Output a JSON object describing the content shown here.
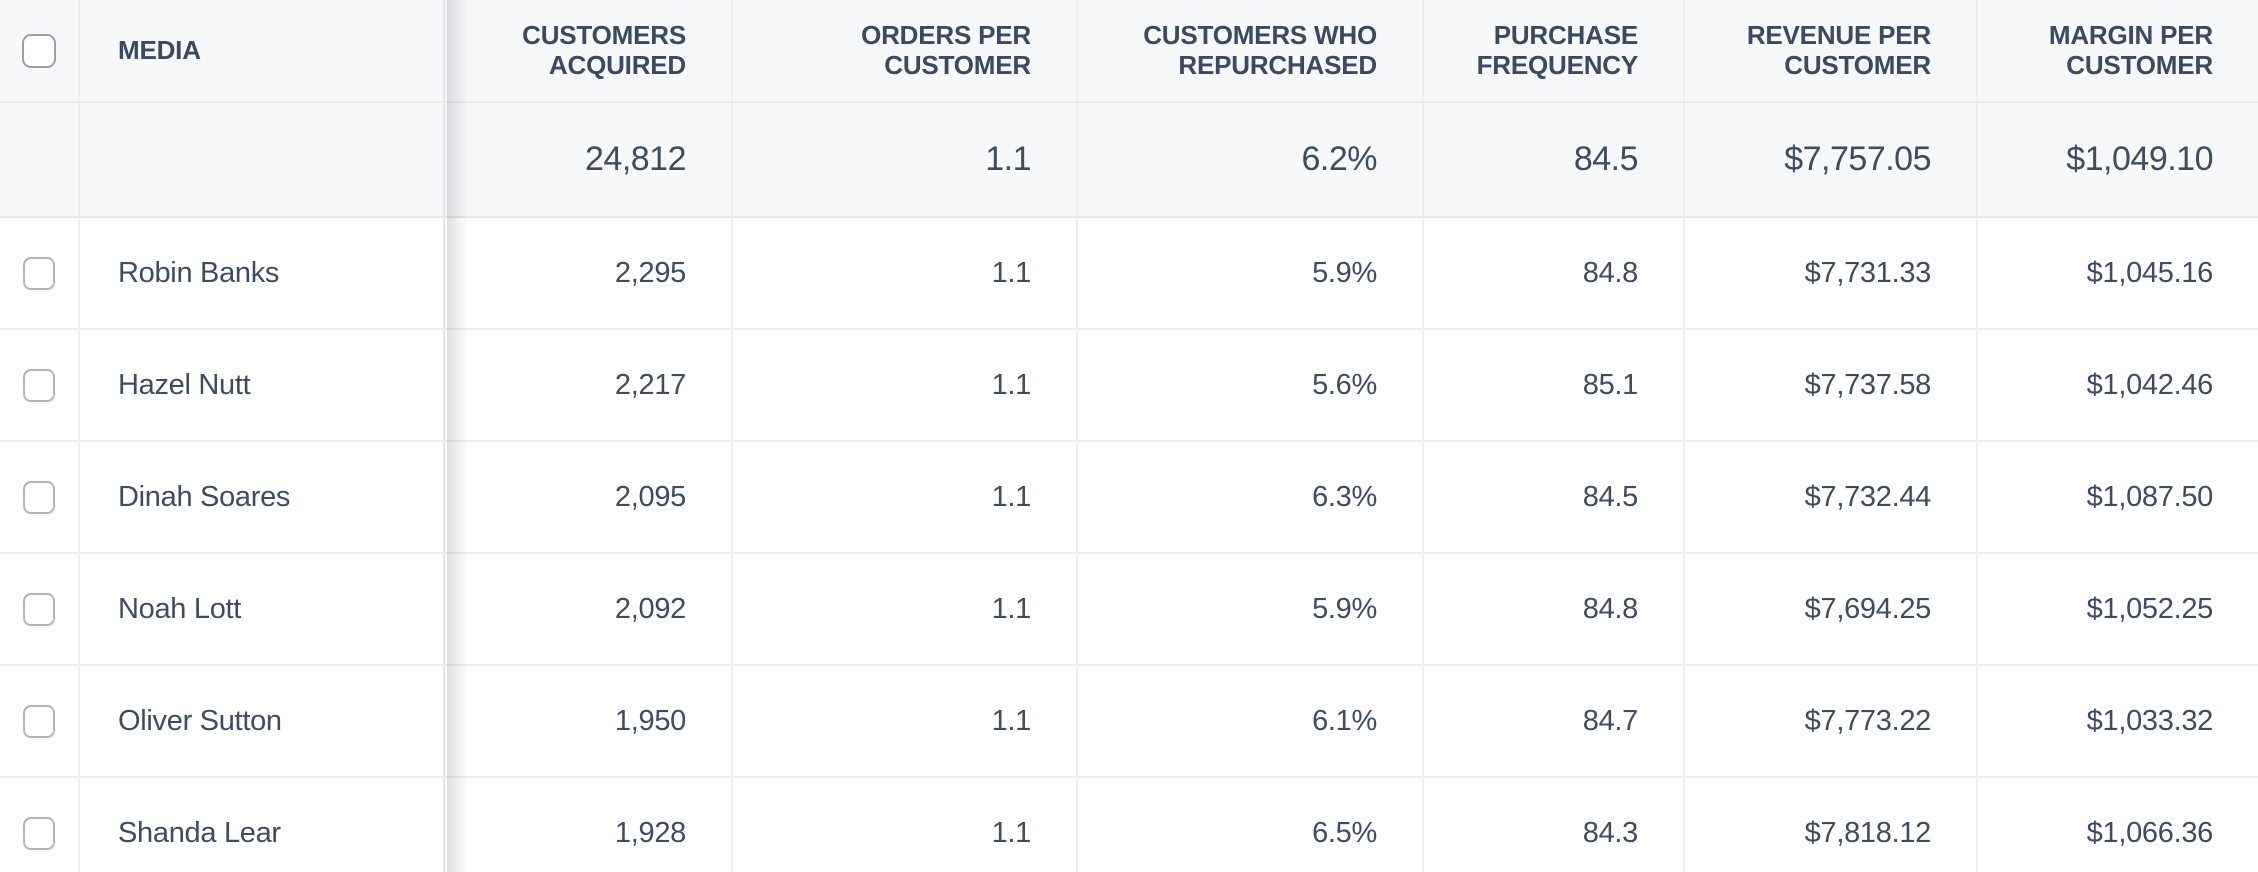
{
  "table": {
    "columns": [
      {
        "key": "media",
        "label": "MEDIA"
      },
      {
        "key": "customers_acquired",
        "label": "CUSTOMERS ACQUIRED"
      },
      {
        "key": "orders_per_customer",
        "label": "ORDERS PER CUSTOMER"
      },
      {
        "key": "customers_who_repurchased",
        "label": "CUSTOMERS WHO REPURCHASED"
      },
      {
        "key": "purchase_frequency",
        "label": "PURCHASE FREQUENCY"
      },
      {
        "key": "revenue_per_customer",
        "label": "REVENUE PER CUSTOMER"
      },
      {
        "key": "margin_per_customer",
        "label": "MARGIN PER CUSTOMER"
      }
    ],
    "summary": {
      "customers_acquired": "24,812",
      "orders_per_customer": "1.1",
      "customers_who_repurchased": "6.2%",
      "purchase_frequency": "84.5",
      "revenue_per_customer": "$7,757.05",
      "margin_per_customer": "$1,049.10"
    },
    "rows": [
      {
        "media": "Robin Banks",
        "customers_acquired": "2,295",
        "orders_per_customer": "1.1",
        "customers_who_repurchased": "5.9%",
        "purchase_frequency": "84.8",
        "revenue_per_customer": "$7,731.33",
        "margin_per_customer": "$1,045.16"
      },
      {
        "media": "Hazel Nutt",
        "customers_acquired": "2,217",
        "orders_per_customer": "1.1",
        "customers_who_repurchased": "5.6%",
        "purchase_frequency": "85.1",
        "revenue_per_customer": "$7,737.58",
        "margin_per_customer": "$1,042.46"
      },
      {
        "media": "Dinah Soares",
        "customers_acquired": "2,095",
        "orders_per_customer": "1.1",
        "customers_who_repurchased": "6.3%",
        "purchase_frequency": "84.5",
        "revenue_per_customer": "$7,732.44",
        "margin_per_customer": "$1,087.50"
      },
      {
        "media": "Noah Lott",
        "customers_acquired": "2,092",
        "orders_per_customer": "1.1",
        "customers_who_repurchased": "5.9%",
        "purchase_frequency": "84.8",
        "revenue_per_customer": "$7,694.25",
        "margin_per_customer": "$1,052.25"
      },
      {
        "media": "Oliver Sutton",
        "customers_acquired": "1,950",
        "orders_per_customer": "1.1",
        "customers_who_repurchased": "6.1%",
        "purchase_frequency": "84.7",
        "revenue_per_customer": "$7,773.22",
        "margin_per_customer": "$1,033.32"
      },
      {
        "media": "Shanda Lear",
        "customers_acquired": "1,928",
        "orders_per_customer": "1.1",
        "customers_who_repurchased": "6.5%",
        "purchase_frequency": "84.3",
        "revenue_per_customer": "$7,818.12",
        "margin_per_customer": "$1,066.36"
      }
    ],
    "colors": {
      "header_background": "#f7f8f9",
      "row_background": "#ffffff",
      "text": "#3d4c62",
      "border": "#ebedef",
      "checkbox_border": "#99a0aa",
      "frozen_shadow": "rgba(62,68,79,0.16)"
    }
  }
}
